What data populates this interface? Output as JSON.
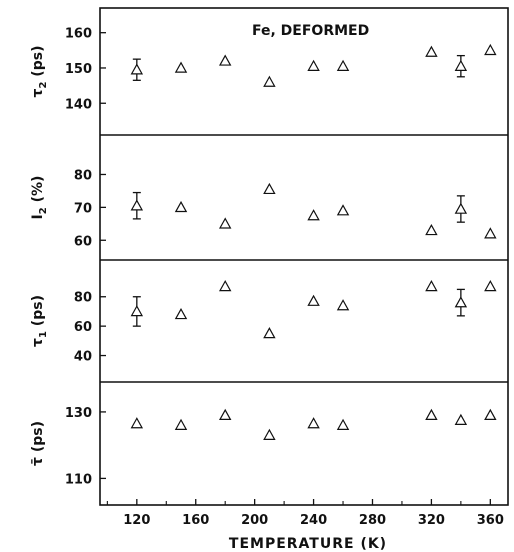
{
  "chart_data": {
    "type": "scatter",
    "annotation": "Fe, DEFORMED",
    "xlabel": "TEMPERATURE (K)",
    "xlim": [
      95,
      372
    ],
    "xticks": [
      120,
      160,
      200,
      240,
      280,
      320,
      360
    ],
    "marker": "open-triangle",
    "grid": false,
    "panels": [
      {
        "ylabel": "τ2 (ps)",
        "ylabel_main": "τ",
        "ylabel_sub": "2",
        "ylabel_unit": " (ps)",
        "ylim": [
          131,
          167
        ],
        "yticks": [
          140,
          150,
          160
        ],
        "points": [
          {
            "x": 120,
            "y": 149.5,
            "err": 3
          },
          {
            "x": 150,
            "y": 150
          },
          {
            "x": 180,
            "y": 152
          },
          {
            "x": 210,
            "y": 146
          },
          {
            "x": 240,
            "y": 150.5
          },
          {
            "x": 260,
            "y": 150.5
          },
          {
            "x": 320,
            "y": 154.5
          },
          {
            "x": 340,
            "y": 150.5,
            "err": 3
          },
          {
            "x": 360,
            "y": 155
          }
        ]
      },
      {
        "ylabel": "I2 (%)",
        "ylabel_main": "I",
        "ylabel_sub": "2",
        "ylabel_unit": " (%)",
        "ylim": [
          54,
          92
        ],
        "yticks": [
          60,
          70,
          80
        ],
        "points": [
          {
            "x": 120,
            "y": 70.5,
            "err": 4
          },
          {
            "x": 150,
            "y": 70
          },
          {
            "x": 180,
            "y": 65
          },
          {
            "x": 210,
            "y": 75.5
          },
          {
            "x": 240,
            "y": 67.5
          },
          {
            "x": 260,
            "y": 69
          },
          {
            "x": 320,
            "y": 63
          },
          {
            "x": 340,
            "y": 69.5,
            "err": 4
          },
          {
            "x": 360,
            "y": 62
          }
        ]
      },
      {
        "ylabel": "τ1 (ps)",
        "ylabel_main": "τ",
        "ylabel_sub": "1",
        "ylabel_unit": " (ps)",
        "ylim": [
          22,
          105
        ],
        "yticks": [
          40,
          60,
          80
        ],
        "points": [
          {
            "x": 120,
            "y": 70,
            "err": 10
          },
          {
            "x": 150,
            "y": 68
          },
          {
            "x": 180,
            "y": 87
          },
          {
            "x": 210,
            "y": 55
          },
          {
            "x": 240,
            "y": 77
          },
          {
            "x": 260,
            "y": 74
          },
          {
            "x": 320,
            "y": 87
          },
          {
            "x": 340,
            "y": 76,
            "err": 9
          },
          {
            "x": 360,
            "y": 87
          }
        ]
      },
      {
        "ylabel": "τ̄ (ps)",
        "ylabel_main": "τ̄",
        "ylabel_sub": "",
        "ylabel_unit": " (ps)",
        "ylim": [
          102,
          139
        ],
        "yticks": [
          110,
          130
        ],
        "points": [
          {
            "x": 120,
            "y": 126.5
          },
          {
            "x": 150,
            "y": 126
          },
          {
            "x": 180,
            "y": 129
          },
          {
            "x": 210,
            "y": 123
          },
          {
            "x": 240,
            "y": 126.5
          },
          {
            "x": 260,
            "y": 126
          },
          {
            "x": 320,
            "y": 129
          },
          {
            "x": 340,
            "y": 127.5
          },
          {
            "x": 360,
            "y": 129
          }
        ]
      }
    ]
  }
}
